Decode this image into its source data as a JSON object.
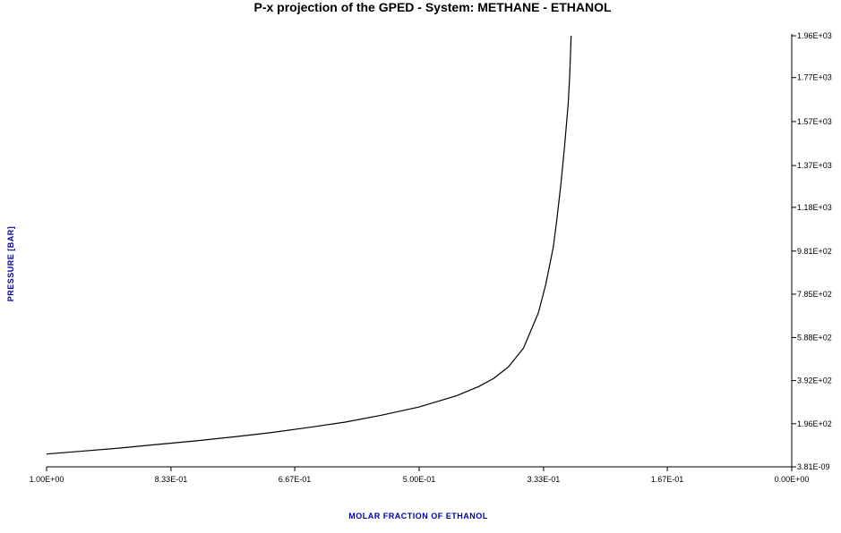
{
  "chart_data": {
    "type": "line",
    "title": "P-x projection of the GPED - System: METHANE - ETHANOL",
    "xlabel": "MOLAR FRACTION OF ETHANOL",
    "ylabel": "PRESSURE [BAR]",
    "x_reversed": true,
    "xlim": [
      1.0,
      0.0
    ],
    "ylim": [
      0.0,
      1960
    ],
    "x_ticks": [
      {
        "value": 1.0,
        "label": "1.00E+00"
      },
      {
        "value": 0.833,
        "label": "8.33E-01"
      },
      {
        "value": 0.667,
        "label": "6.67E-01"
      },
      {
        "value": 0.5,
        "label": "5.00E-01"
      },
      {
        "value": 0.333,
        "label": "3.33E-01"
      },
      {
        "value": 0.167,
        "label": "1.67E-01"
      },
      {
        "value": 0.0,
        "label": "0.00E+00"
      }
    ],
    "y_ticks": [
      {
        "value": 0.0,
        "label": "3.81E-09"
      },
      {
        "value": 196,
        "label": "1.96E+02"
      },
      {
        "value": 392,
        "label": "3.92E+02"
      },
      {
        "value": 588,
        "label": "5.88E+02"
      },
      {
        "value": 785,
        "label": "7.85E+02"
      },
      {
        "value": 981,
        "label": "9.81E+02"
      },
      {
        "value": 1180,
        "label": "1.18E+03"
      },
      {
        "value": 1370,
        "label": "1.37E+03"
      },
      {
        "value": 1570,
        "label": "1.57E+03"
      },
      {
        "value": 1770,
        "label": "1.77E+03"
      },
      {
        "value": 1960,
        "label": "1.96E+03"
      }
    ],
    "series": [
      {
        "color": "#000000",
        "x": [
          1.0,
          0.95,
          0.9,
          0.85,
          0.8,
          0.75,
          0.7,
          0.65,
          0.6,
          0.55,
          0.5,
          0.45,
          0.42,
          0.4,
          0.38,
          0.36,
          0.34,
          0.33,
          0.32,
          0.315,
          0.31,
          0.305,
          0.3,
          0.298,
          0.296
        ],
        "y": [
          58,
          72,
          86,
          102,
          118,
          136,
          155,
          178,
          203,
          235,
          272,
          323,
          365,
          402,
          455,
          540,
          700,
          830,
          1000,
          1130,
          1280,
          1450,
          1650,
          1780,
          1960
        ]
      }
    ],
    "grid": false,
    "legend": "none"
  }
}
